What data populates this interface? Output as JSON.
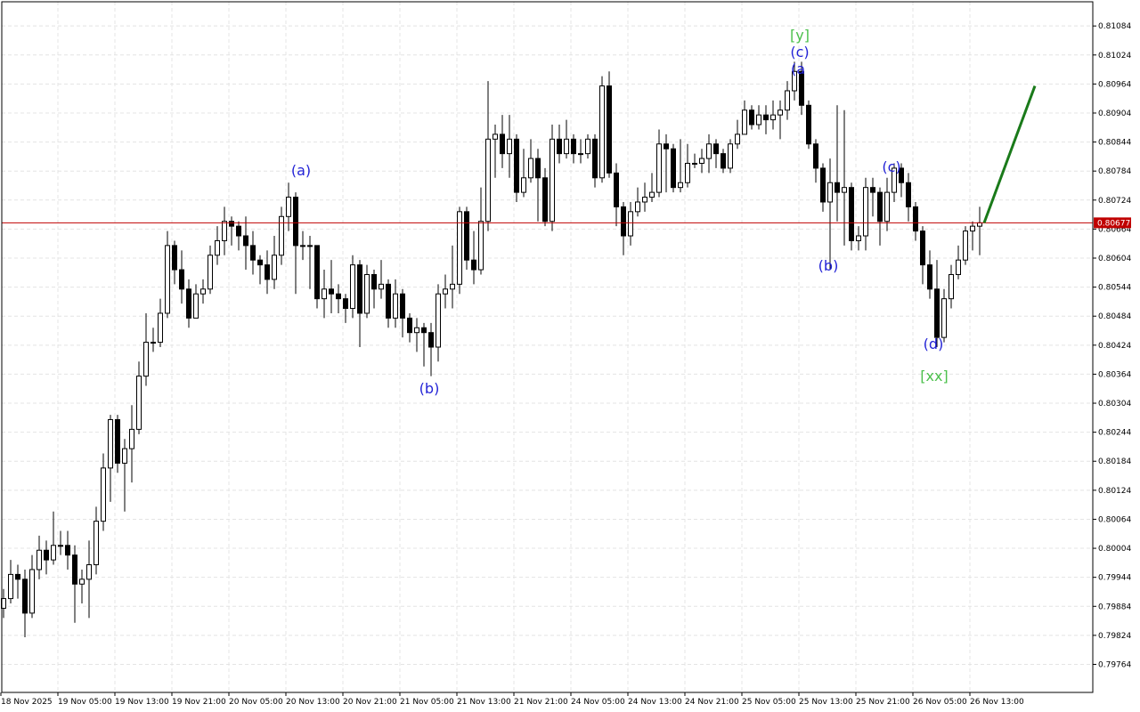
{
  "chart_data": {
    "type": "candlestick",
    "ylim": [
      0.79706,
      0.81134
    ],
    "yticks": [
      0.81084,
      0.81024,
      0.80964,
      0.80904,
      0.80844,
      0.80784,
      0.80724,
      0.80664,
      0.80604,
      0.80544,
      0.80484,
      0.80424,
      0.80364,
      0.80304,
      0.80244,
      0.80184,
      0.80124,
      0.80064,
      0.80004,
      0.79944,
      0.79884,
      0.79824,
      0.79764
    ],
    "grid": true,
    "categories": [
      "18 Nov 2025",
      null,
      null,
      null,
      null,
      null,
      null,
      null,
      "19 Nov 05:00",
      null,
      null,
      null,
      null,
      null,
      null,
      null,
      "19 Nov 13:00",
      null,
      null,
      null,
      null,
      null,
      null,
      null,
      "19 Nov 21:00",
      null,
      null,
      null,
      null,
      null,
      null,
      null,
      "20 Nov 05:00",
      null,
      null,
      null,
      null,
      null,
      null,
      null,
      "20 Nov 13:00",
      null,
      null,
      null,
      null,
      null,
      null,
      null,
      "20 Nov 21:00",
      null,
      null,
      null,
      null,
      null,
      null,
      null,
      "21 Nov 05:00",
      null,
      null,
      null,
      null,
      null,
      null,
      null,
      "21 Nov 13:00",
      null,
      null,
      null,
      null,
      null,
      null,
      null,
      "21 Nov 21:00",
      null,
      null,
      null,
      null,
      null,
      null,
      null,
      "24 Nov 05:00",
      null,
      null,
      null,
      null,
      null,
      null,
      null,
      "24 Nov 13:00",
      null,
      null,
      null,
      null,
      null,
      null,
      null,
      "24 Nov 21:00",
      null,
      null,
      null,
      null,
      null,
      null,
      null,
      "25 Nov 05:00",
      null,
      null,
      null,
      null,
      null,
      null,
      null,
      "25 Nov 13:00",
      null,
      null,
      null,
      null,
      null,
      null,
      null,
      "25 Nov 21:00",
      null,
      null,
      null,
      null,
      null,
      null,
      null,
      "26 Nov 05:00",
      null,
      null,
      null,
      null,
      null,
      null,
      null,
      "26 Nov 13:00",
      null
    ],
    "bull_color": "#ffffff",
    "bear_color": "#000000",
    "open": [
      0.7988,
      0.799,
      0.7995,
      0.7994,
      0.7987,
      0.7996,
      0.8,
      0.7998,
      0.8001,
      0.8001,
      0.7999,
      0.7993,
      0.7994,
      0.7997,
      0.8006,
      0.8017,
      0.8027,
      0.8018,
      0.8021,
      0.8025,
      0.8036,
      0.8043,
      0.8043,
      0.8049,
      0.8063,
      0.8058,
      0.8054,
      0.8048,
      0.8053,
      0.8054,
      0.8061,
      0.8064,
      0.8068,
      0.8067,
      0.8065,
      0.8063,
      0.806,
      0.8059,
      0.8056,
      0.8061,
      0.8069,
      0.8073,
      0.8063,
      0.8063,
      0.8063,
      0.8052,
      0.8054,
      0.8053,
      0.8052,
      0.805,
      0.8059,
      0.8049,
      0.8057,
      0.8054,
      0.8055,
      0.8048,
      0.8053,
      0.8048,
      0.8045,
      0.8046,
      0.8045,
      0.8042,
      0.8053,
      0.8054,
      0.8055,
      0.807,
      0.806,
      0.8058,
      0.8068,
      0.8085,
      0.8086,
      0.8082,
      0.8085,
      0.8074,
      0.8077,
      0.8081,
      0.8077,
      0.8068,
      0.8085,
      0.8082,
      0.8085,
      0.8082,
      0.8082,
      0.8085,
      0.8077,
      0.8096,
      0.8078,
      0.8071,
      0.8065,
      0.807,
      0.8072,
      0.8073,
      0.8074,
      0.8084,
      0.8083,
      0.8075,
      0.8076,
      0.808,
      0.808,
      0.8081,
      0.8084,
      0.8082,
      0.8079,
      0.8084,
      0.8086,
      0.8091,
      0.8088,
      0.809,
      0.8089,
      0.809,
      0.8091,
      0.8095,
      0.8099,
      0.8092,
      0.8084,
      0.8079,
      0.8072,
      0.8076,
      0.8074,
      0.8075,
      0.8064,
      0.8065,
      0.8075,
      0.8074,
      0.8068,
      0.8074,
      0.8079,
      0.8076,
      0.8071,
      0.8066,
      0.8059,
      0.8054,
      0.8044,
      0.8052,
      0.8057,
      0.806,
      0.8066,
      0.8067
    ],
    "high": [
      0.7992,
      0.7998,
      0.7997,
      0.7996,
      0.7999,
      0.8003,
      0.8002,
      0.8008,
      0.8004,
      0.8004,
      0.8001,
      0.7996,
      0.8002,
      0.8009,
      0.802,
      0.8028,
      0.8028,
      0.8023,
      0.803,
      0.8039,
      0.8049,
      0.8046,
      0.8052,
      0.8066,
      0.8064,
      0.8062,
      0.8056,
      0.8055,
      0.8056,
      0.8063,
      0.8067,
      0.8071,
      0.8069,
      0.8068,
      0.8069,
      0.8066,
      0.8061,
      0.8062,
      0.8065,
      0.8071,
      0.8076,
      0.8074,
      0.8066,
      0.8065,
      0.8063,
      0.8058,
      0.806,
      0.8055,
      0.8053,
      0.8061,
      0.806,
      0.8059,
      0.8058,
      0.806,
      0.8056,
      0.8056,
      0.8054,
      0.8049,
      0.8048,
      0.8047,
      0.8047,
      0.8055,
      0.8057,
      0.8063,
      0.8071,
      0.8071,
      0.8066,
      0.8075,
      0.8097,
      0.8088,
      0.809,
      0.809,
      0.8086,
      0.8083,
      0.8085,
      0.8083,
      0.8079,
      0.8088,
      0.8088,
      0.8089,
      0.8086,
      0.8085,
      0.8086,
      0.8086,
      0.8098,
      0.8099,
      0.808,
      0.8072,
      0.8072,
      0.8075,
      0.8076,
      0.8078,
      0.8087,
      0.8086,
      0.8084,
      0.8085,
      0.8084,
      0.8082,
      0.8083,
      0.8086,
      0.8085,
      0.8083,
      0.8085,
      0.8089,
      0.8093,
      0.8092,
      0.8092,
      0.8092,
      0.8093,
      0.8093,
      0.8097,
      0.8101,
      0.8101,
      0.8093,
      0.8085,
      0.808,
      0.8081,
      0.8092,
      0.8091,
      0.8076,
      0.8067,
      0.8077,
      0.8077,
      0.8075,
      0.8077,
      0.808,
      0.808,
      0.8078,
      0.8072,
      0.8067,
      0.8062,
      0.806,
      0.8054,
      0.8059,
      0.8063,
      0.8067,
      0.8068,
      0.8071
    ],
    "low": [
      0.7986,
      0.7989,
      0.799,
      0.7982,
      0.7986,
      0.7994,
      0.7995,
      0.7997,
      0.7999,
      0.7996,
      0.7985,
      0.7989,
      0.7986,
      0.7995,
      0.8004,
      0.801,
      0.8016,
      0.8008,
      0.8014,
      0.8024,
      0.8034,
      0.8041,
      0.8042,
      0.8048,
      0.8055,
      0.8051,
      0.8046,
      0.8049,
      0.8051,
      0.8053,
      0.8059,
      0.8061,
      0.8063,
      0.8062,
      0.8058,
      0.8057,
      0.8055,
      0.8053,
      0.8054,
      0.8059,
      0.8066,
      0.8053,
      0.806,
      0.8054,
      0.805,
      0.8048,
      0.8049,
      0.8049,
      0.8047,
      0.8048,
      0.8042,
      0.8048,
      0.805,
      0.8052,
      0.8046,
      0.8046,
      0.8044,
      0.8043,
      0.8041,
      0.8038,
      0.8036,
      0.8039,
      0.805,
      0.805,
      0.8053,
      0.8058,
      0.8055,
      0.8057,
      0.8066,
      0.8077,
      0.8079,
      0.8077,
      0.8072,
      0.8073,
      0.8076,
      0.8068,
      0.8067,
      0.8066,
      0.808,
      0.8081,
      0.808,
      0.808,
      0.8081,
      0.8075,
      0.8076,
      0.8077,
      0.8067,
      0.8061,
      0.8063,
      0.8069,
      0.807,
      0.8072,
      0.8073,
      0.8074,
      0.8074,
      0.8074,
      0.8075,
      0.8079,
      0.8078,
      0.8078,
      0.8079,
      0.8078,
      0.8078,
      0.8083,
      0.8086,
      0.8087,
      0.8087,
      0.8086,
      0.8087,
      0.8085,
      0.8089,
      0.8093,
      0.809,
      0.8083,
      0.8076,
      0.807,
      0.8058,
      0.8068,
      0.8063,
      0.8062,
      0.8062,
      0.8062,
      0.8069,
      0.8063,
      0.8066,
      0.8072,
      0.8073,
      0.8068,
      0.8064,
      0.8055,
      0.8052,
      0.8042,
      0.8043,
      0.805,
      0.8056,
      0.8059,
      0.8062,
      0.8061
    ],
    "close": [
      0.799,
      0.7995,
      0.7994,
      0.7987,
      0.7996,
      0.8,
      0.7998,
      0.8001,
      0.8001,
      0.7999,
      0.7993,
      0.7994,
      0.7997,
      0.8006,
      0.8017,
      0.8027,
      0.8018,
      0.8021,
      0.8025,
      0.8036,
      0.8043,
      0.8043,
      0.8049,
      0.8063,
      0.8058,
      0.8054,
      0.8048,
      0.8053,
      0.8054,
      0.8061,
      0.8064,
      0.8068,
      0.8067,
      0.8065,
      0.8063,
      0.806,
      0.8059,
      0.8056,
      0.8061,
      0.8069,
      0.8073,
      0.8063,
      0.8063,
      0.8063,
      0.8052,
      0.8054,
      0.8053,
      0.8052,
      0.805,
      0.8059,
      0.8049,
      0.8057,
      0.8054,
      0.8055,
      0.8048,
      0.8053,
      0.8048,
      0.8045,
      0.8046,
      0.8045,
      0.8042,
      0.8053,
      0.8054,
      0.8055,
      0.807,
      0.806,
      0.8058,
      0.8068,
      0.8085,
      0.8086,
      0.8082,
      0.8085,
      0.8074,
      0.8077,
      0.8081,
      0.8077,
      0.8068,
      0.8085,
      0.8082,
      0.8085,
      0.8082,
      0.8082,
      0.8085,
      0.8077,
      0.8096,
      0.8078,
      0.8071,
      0.8065,
      0.807,
      0.8072,
      0.8073,
      0.8074,
      0.8084,
      0.8083,
      0.8075,
      0.8076,
      0.808,
      0.808,
      0.8081,
      0.8084,
      0.8082,
      0.8079,
      0.8084,
      0.8086,
      0.8091,
      0.8088,
      0.809,
      0.8089,
      0.809,
      0.8091,
      0.8095,
      0.8099,
      0.8092,
      0.8084,
      0.8079,
      0.8072,
      0.8076,
      0.8074,
      0.8075,
      0.8064,
      0.8065,
      0.8075,
      0.8074,
      0.8068,
      0.8074,
      0.8079,
      0.8076,
      0.8071,
      0.8066,
      0.8059,
      0.8054,
      0.8044,
      0.8052,
      0.8057,
      0.806,
      0.8066,
      0.8067,
      0.80677
    ],
    "current_price": {
      "value": 0.80677,
      "color": "#c00000"
    },
    "forecast": {
      "values": [
        0.80677,
        0.8096
      ],
      "color": "#1a7a1a"
    },
    "annotations": [
      {
        "text": "(a)",
        "color": "#2323d6"
      },
      {
        "text": "(b)",
        "color": "#2323d6"
      },
      {
        "text": "[y]",
        "color": "#4cc04c"
      },
      {
        "text": "(c)",
        "color": "#2323d6"
      },
      {
        "text": "(a",
        "color": "#2323d6"
      },
      {
        "text": "(b)",
        "color": "#2323d6"
      },
      {
        "text": "(c)",
        "color": "#2323d6"
      },
      {
        "text": "(d)",
        "color": "#2323d6"
      },
      {
        "text": "[xx]",
        "color": "#4cc04c"
      }
    ]
  }
}
